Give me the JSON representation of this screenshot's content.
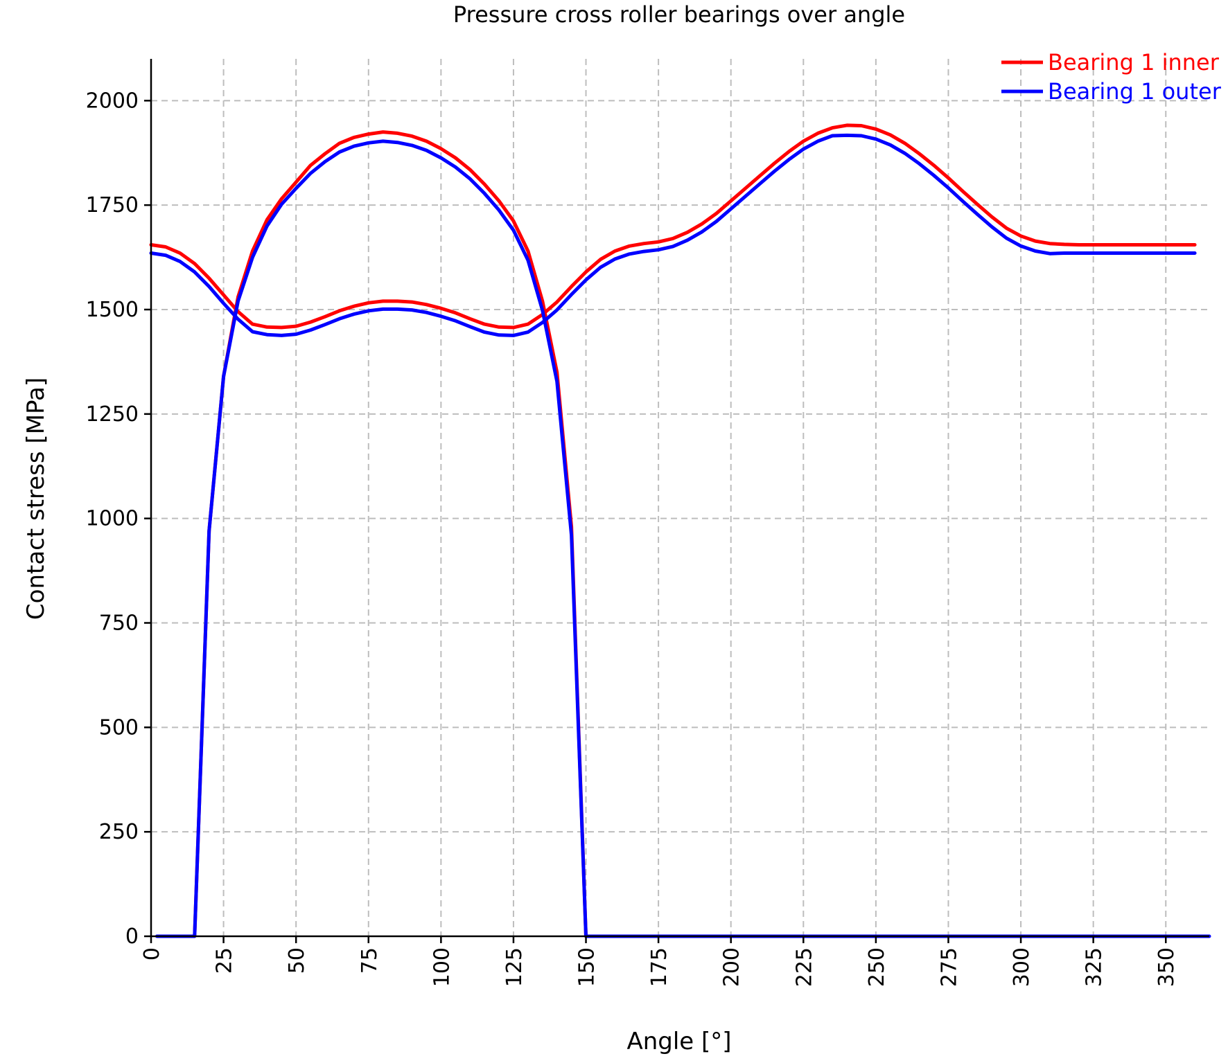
{
  "chart_data": {
    "type": "line",
    "title": "Pressure cross roller bearings over angle",
    "xlabel": "Angle [°]",
    "ylabel": "Contact stress [MPa]",
    "xlim": [
      0,
      365
    ],
    "ylim": [
      0,
      2100
    ],
    "xticks": [
      0,
      25,
      50,
      75,
      100,
      125,
      150,
      175,
      200,
      225,
      250,
      275,
      300,
      325,
      350
    ],
    "yticks": [
      0,
      250,
      500,
      750,
      1000,
      1250,
      1500,
      1750,
      2000
    ],
    "grid": true,
    "legend_position": "top-right",
    "series": [
      {
        "name": "Bearing 1 inner",
        "color": "#ff0000",
        "curves": [
          {
            "x": [
              0,
              5,
              10,
              15,
              20,
              25,
              30,
              35,
              40,
              45,
              50,
              55,
              60,
              65,
              70,
              75,
              80,
              85,
              90,
              95,
              100,
              105,
              110,
              115,
              120,
              125,
              130,
              135,
              140,
              145,
              150,
              155,
              160,
              165,
              170,
              175,
              180,
              185,
              190,
              195,
              200,
              205,
              210,
              215,
              220,
              225,
              230,
              235,
              240,
              245,
              250,
              255,
              260,
              265,
              270,
              275,
              280,
              285,
              290,
              295,
              300,
              305,
              310,
              315,
              320,
              325,
              330,
              335,
              340,
              345,
              350,
              355,
              360
            ],
            "y": [
              1655,
              1650,
              1635,
              1610,
              1575,
              1535,
              1495,
              1465,
              1458,
              1457,
              1460,
              1470,
              1483,
              1497,
              1508,
              1516,
              1520,
              1520,
              1518,
              1512,
              1503,
              1492,
              1478,
              1465,
              1458,
              1457,
              1465,
              1488,
              1518,
              1555,
              1590,
              1620,
              1640,
              1652,
              1658,
              1662,
              1670,
              1685,
              1705,
              1730,
              1760,
              1790,
              1820,
              1850,
              1878,
              1903,
              1922,
              1935,
              1941,
              1940,
              1932,
              1918,
              1898,
              1873,
              1845,
              1815,
              1783,
              1752,
              1722,
              1695,
              1676,
              1664,
              1658,
              1656,
              1655,
              1655,
              1655,
              1655,
              1655,
              1655,
              1655,
              1655,
              1655
            ]
          },
          {
            "x": [
              12,
              15,
              20,
              25,
              30,
              35,
              40,
              45,
              50,
              55,
              60,
              65,
              70,
              75,
              80,
              85,
              90,
              95,
              100,
              105,
              110,
              115,
              120,
              125,
              130,
              135,
              140,
              145,
              150,
              155,
              160,
              165,
              168
            ],
            "y": [
              0,
              0,
              970,
              1340,
              1530,
              1640,
              1715,
              1765,
              1805,
              1845,
              1873,
              1898,
              1912,
              1920,
              1925,
              1922,
              1915,
              1903,
              1885,
              1863,
              1835,
              1800,
              1760,
              1712,
              1640,
              1520,
              1350,
              980,
              0,
              0,
              0,
              0,
              0
            ]
          }
        ]
      },
      {
        "name": "Bearing 1 outer",
        "color": "#0000ff",
        "curves": [
          {
            "x": [
              0,
              5,
              10,
              15,
              20,
              25,
              30,
              35,
              40,
              45,
              50,
              55,
              60,
              65,
              70,
              75,
              80,
              85,
              90,
              95,
              100,
              105,
              110,
              115,
              120,
              125,
              130,
              135,
              140,
              145,
              150,
              155,
              160,
              165,
              170,
              175,
              180,
              185,
              190,
              195,
              200,
              205,
              210,
              215,
              220,
              225,
              230,
              235,
              240,
              245,
              250,
              255,
              260,
              265,
              270,
              275,
              280,
              285,
              290,
              295,
              300,
              305,
              310,
              315,
              320,
              325,
              330,
              335,
              340,
              345,
              350,
              355,
              360
            ],
            "y": [
              1635,
              1630,
              1615,
              1590,
              1555,
              1515,
              1477,
              1447,
              1440,
              1438,
              1441,
              1451,
              1464,
              1478,
              1489,
              1497,
              1501,
              1501,
              1499,
              1493,
              1484,
              1473,
              1459,
              1446,
              1439,
              1438,
              1446,
              1469,
              1499,
              1536,
              1571,
              1601,
              1621,
              1633,
              1639,
              1643,
              1651,
              1666,
              1686,
              1711,
              1741,
              1771,
              1801,
              1831,
              1859,
              1884,
              1903,
              1916,
              1917,
              1916,
              1908,
              1894,
              1874,
              1849,
              1821,
              1791,
              1759,
              1728,
              1698,
              1671,
              1652,
              1640,
              1634,
              1635,
              1635,
              1635,
              1635,
              1635,
              1635,
              1635,
              1635,
              1635,
              1635
            ]
          },
          {
            "x": [
              2,
              5,
              10,
              12,
              15,
              20,
              25,
              30,
              35,
              40,
              45,
              50,
              55,
              60,
              65,
              70,
              75,
              80,
              85,
              90,
              95,
              100,
              105,
              110,
              115,
              120,
              125,
              130,
              135,
              140,
              145,
              150,
              155,
              160,
              165,
              170,
              175,
              200,
              250,
              300,
              350,
              365
            ],
            "y": [
              0,
              0,
              0,
              0,
              0,
              970,
              1340,
              1520,
              1625,
              1700,
              1752,
              1790,
              1826,
              1854,
              1877,
              1891,
              1899,
              1903,
              1900,
              1893,
              1881,
              1863,
              1841,
              1813,
              1778,
              1738,
              1690,
              1618,
              1498,
              1328,
              960,
              0,
              0,
              0,
              0,
              0,
              0,
              0,
              0,
              0,
              0,
              0
            ]
          }
        ]
      }
    ]
  }
}
